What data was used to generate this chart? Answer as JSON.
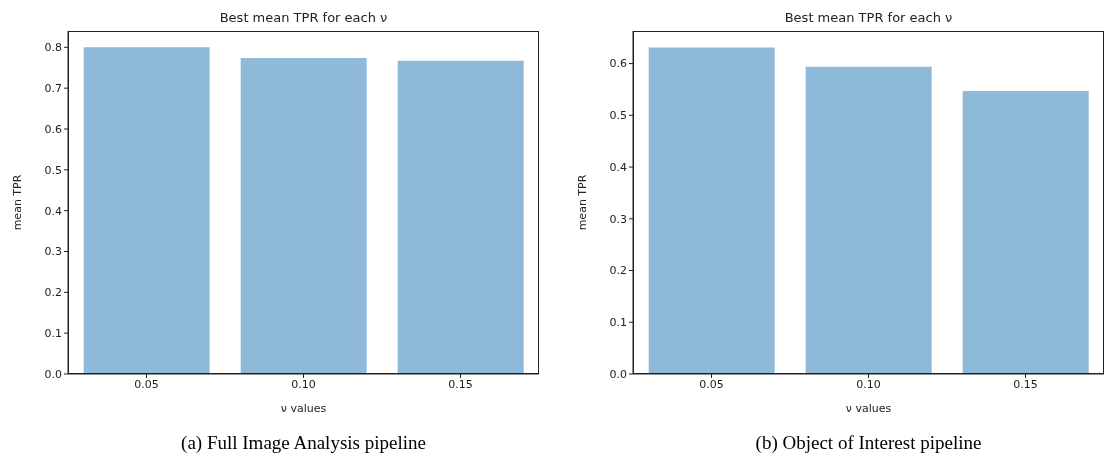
{
  "chart_data": [
    {
      "type": "bar",
      "title": "Best mean TPR for each ν",
      "xlabel": "ν values",
      "ylabel": "mean TPR",
      "categories": [
        "0.05",
        "0.10",
        "0.15"
      ],
      "values": [
        0.8,
        0.774,
        0.767
      ],
      "color": "#8fb9d9",
      "ylim": [
        0,
        0.84
      ],
      "yticks": [
        {
          "value": 0,
          "label": "0.0"
        },
        0.1,
        0.2,
        0.3,
        0.4,
        0.5,
        0.6,
        0.7,
        0.8
      ],
      "grid": false,
      "annotations": [
        "(a) Full Image Analysis pipeline"
      ]
    },
    {
      "type": "bar",
      "title": "Best mean TPR for each ν",
      "xlabel": "ν values",
      "ylabel": "mean TPR",
      "categories": [
        "0.05",
        "0.10",
        "0.15"
      ],
      "values": [
        0.631,
        0.594,
        0.547
      ],
      "color": "#8fb9d9",
      "ylim": [
        0,
        0.663
      ],
      "yticks": [
        {
          "value": 0,
          "label": "0.0"
        },
        0.1,
        0.2,
        0.3,
        0.4,
        0.5,
        0.6
      ],
      "grid": false,
      "annotations": [
        "(b) Object of Interest pipeline"
      ]
    }
  ]
}
